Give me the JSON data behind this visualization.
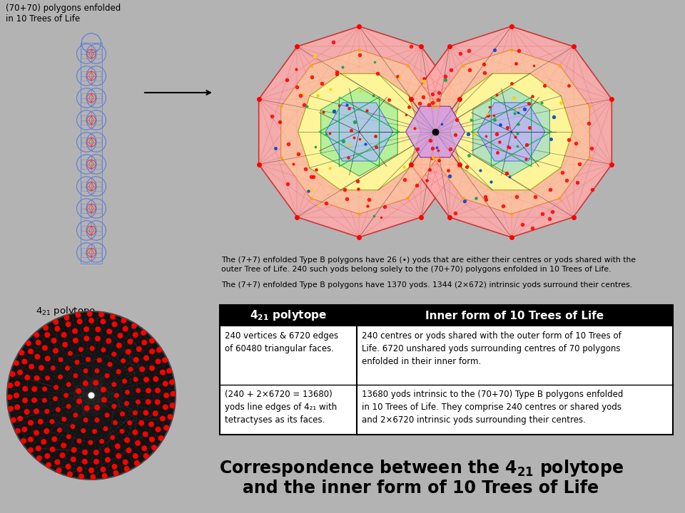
{
  "bg_color": "#b3b3b3",
  "title_top_left": "(70+70) polygons enfolded\nin 10 Trees of Life",
  "text_line1": "The (7+7) enfolded Type B polygons have 26 (•) yods that are either their centres or yods shared with the\nouter Tree of Life. 240 such yods belong solely to the (70+70) polygons enfolded in 10 Trees of Life.",
  "text_line2": "The (7+7) enfolded Type B polygons have 1370 yods. 1344 (2×672) intrinsic yods surround their centres.",
  "table_header_left": "4₂₁ polytope",
  "table_header_right": "Inner form of 10 Trees of Life",
  "table_row1_left": "240 vertices & 6720 edges\nof 60480 triangular faces.",
  "table_row1_right": "240 centres or yods shared with the outer form of 10 Trees of\nLife. 6720 unshared yods surrounding centres of 70 polygons\nenfolded in their inner form.",
  "table_row2_left": "(240 + 2×6720 = 13680)\nyods line edges of 4₂₁ with\ntetractyses as its faces.",
  "table_row2_right": "13680 yods intrinsic to the (70+70) Type B polygons enfolded\nin 10 Trees of Life. They comprise 240 centres or shared yods\nand 2×6720 intrinsic yods surrounding their centres.",
  "bottom_line1": "Correspondence between the 4",
  "bottom_line2": "and the inner form of 10 Trees of Life",
  "header_bg": "#000000",
  "header_fg": "#ffffff",
  "table_bg": "#ffffff",
  "arrow_color": "#000000"
}
